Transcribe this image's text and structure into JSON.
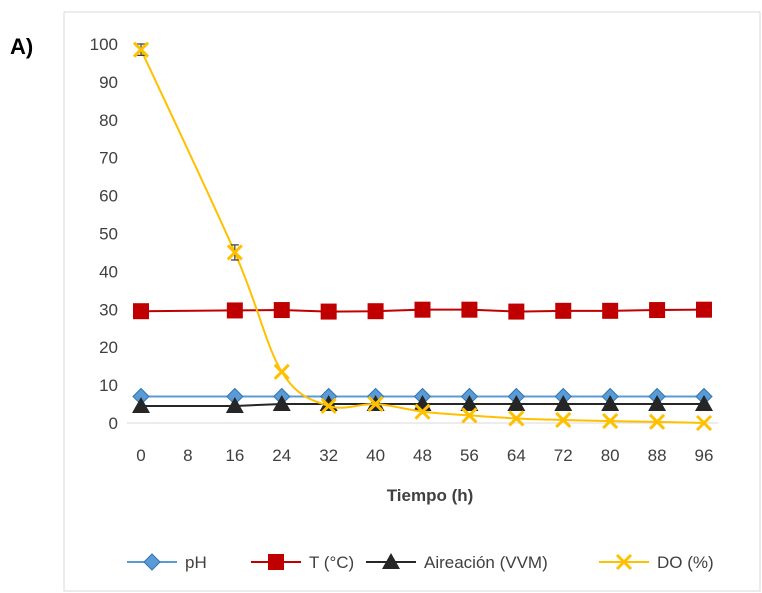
{
  "panel_label": "A)",
  "chart_data": {
    "type": "line",
    "xlabel": "Tiempo (h)",
    "ylabel": "",
    "x_ticks": [
      0,
      8,
      16,
      24,
      32,
      40,
      48,
      56,
      64,
      72,
      80,
      88,
      96
    ],
    "y_ticks": [
      0,
      10,
      20,
      30,
      40,
      50,
      60,
      70,
      80,
      90,
      100
    ],
    "xlim": [
      0,
      96
    ],
    "ylim": [
      0,
      100
    ],
    "grid": false,
    "legend_position": "bottom",
    "series": [
      {
        "name": "pH",
        "color": "#5B9BD5",
        "marker": "diamond",
        "smooth": false,
        "x": [
          0,
          16,
          24,
          32,
          40,
          48,
          56,
          64,
          72,
          80,
          88,
          96
        ],
        "y": [
          7,
          7,
          7,
          7,
          7,
          7,
          7,
          7,
          7,
          7,
          7,
          7
        ]
      },
      {
        "name": "T (°C)",
        "color": "#C00000",
        "marker": "square",
        "smooth": false,
        "x": [
          0,
          16,
          24,
          32,
          40,
          48,
          56,
          64,
          72,
          80,
          88,
          96
        ],
        "y": [
          29.5,
          29.7,
          29.8,
          29.4,
          29.5,
          29.9,
          29.9,
          29.4,
          29.6,
          29.6,
          29.8,
          29.9
        ]
      },
      {
        "name": "Aireación (VVM)",
        "color": "#262626",
        "marker": "triangle",
        "smooth": false,
        "x": [
          0,
          16,
          24,
          32,
          40,
          48,
          56,
          64,
          72,
          80,
          88,
          96
        ],
        "y": [
          4.5,
          4.5,
          5,
          5,
          5,
          5,
          5,
          5,
          5,
          5,
          5,
          5
        ]
      },
      {
        "name": "DO (%)",
        "color": "#FFC000",
        "marker": "x",
        "smooth": true,
        "x": [
          0,
          16,
          24,
          32,
          40,
          48,
          56,
          64,
          72,
          80,
          88,
          96
        ],
        "y": [
          98.5,
          45,
          13.5,
          4.5,
          5,
          3,
          2,
          1.2,
          0.8,
          0.5,
          0.3,
          0
        ],
        "error": [
          1.5,
          2,
          0,
          0,
          0,
          0,
          0,
          0,
          0,
          0,
          0,
          0
        ]
      }
    ]
  }
}
